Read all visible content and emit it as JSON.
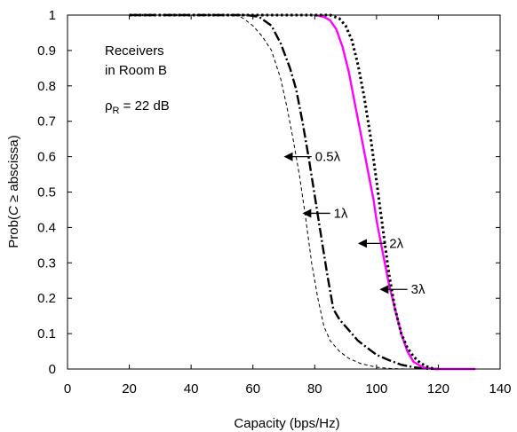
{
  "chart_data": {
    "type": "line",
    "title": "",
    "xlabel": "Capacity (bps/Hz)",
    "ylabel": {
      "prefix": "Prob(",
      "var": "C",
      "op": " ≥ ",
      "suffix": "abscissa)"
    },
    "xlim": [
      0,
      140
    ],
    "ylim": [
      0,
      1
    ],
    "x_ticks": [
      "0",
      "20",
      "40",
      "60",
      "80",
      "100",
      "120",
      "140"
    ],
    "y_ticks": [
      "0",
      "0.1",
      "0.2",
      "0.3",
      "0.4",
      "0.5",
      "0.6",
      "0.7",
      "0.8",
      "0.9",
      "1"
    ],
    "grid": false,
    "legend": "none",
    "note": {
      "line1": "Receivers",
      "line2": "in Room B",
      "rho": "ρ",
      "rho_sub": "R",
      "rho_value": " = 22 dB"
    },
    "series": [
      {
        "name": "0.5λ",
        "color": "#000000",
        "style": "thin-dash",
        "points": [
          [
            20,
            1
          ],
          [
            55,
            1
          ],
          [
            57,
            0.99
          ],
          [
            60,
            0.97
          ],
          [
            63,
            0.94
          ],
          [
            66,
            0.9
          ],
          [
            69,
            0.82
          ],
          [
            71,
            0.74
          ],
          [
            73,
            0.65
          ],
          [
            75,
            0.55
          ],
          [
            77,
            0.43
          ],
          [
            79,
            0.3
          ],
          [
            81,
            0.2
          ],
          [
            83,
            0.12
          ],
          [
            85,
            0.08
          ],
          [
            88,
            0.05
          ],
          [
            91,
            0.03
          ],
          [
            95,
            0.015
          ],
          [
            100,
            0.005
          ],
          [
            105,
            0.001
          ],
          [
            110,
            0
          ]
        ]
      },
      {
        "name": "1λ",
        "color": "#000000",
        "style": "dash-dot",
        "points": [
          [
            20,
            1
          ],
          [
            58,
            1
          ],
          [
            62,
            0.995
          ],
          [
            66,
            0.97
          ],
          [
            69,
            0.92
          ],
          [
            72,
            0.85
          ],
          [
            74,
            0.79
          ],
          [
            76,
            0.7
          ],
          [
            78,
            0.6
          ],
          [
            80,
            0.49
          ],
          [
            82,
            0.38
          ],
          [
            84,
            0.27
          ],
          [
            86,
            0.17
          ],
          [
            88,
            0.14
          ],
          [
            91,
            0.11
          ],
          [
            94,
            0.08
          ],
          [
            97,
            0.06
          ],
          [
            100,
            0.04
          ],
          [
            104,
            0.025
          ],
          [
            108,
            0.012
          ],
          [
            112,
            0.005
          ],
          [
            116,
            0.001
          ],
          [
            120,
            0
          ]
        ]
      },
      {
        "name": "2λ",
        "color": "#ff00ff",
        "style": "solid",
        "points": [
          [
            80,
            1
          ],
          [
            83,
            0.995
          ],
          [
            85,
            0.985
          ],
          [
            87,
            0.96
          ],
          [
            89,
            0.91
          ],
          [
            91,
            0.84
          ],
          [
            93,
            0.75
          ],
          [
            95,
            0.66
          ],
          [
            97,
            0.57
          ],
          [
            99,
            0.48
          ],
          [
            100,
            0.42
          ],
          [
            102,
            0.33
          ],
          [
            104,
            0.24
          ],
          [
            106,
            0.17
          ],
          [
            108,
            0.1
          ],
          [
            110,
            0.05
          ],
          [
            112,
            0.02
          ],
          [
            115,
            0.005
          ],
          [
            118,
            0.001
          ],
          [
            120,
            0
          ],
          [
            132,
            0
          ]
        ]
      },
      {
        "name": "3λ",
        "color": "#000000",
        "style": "bold-dot",
        "points": [
          [
            20,
            1
          ],
          [
            85,
            1
          ],
          [
            88,
            0.99
          ],
          [
            90,
            0.97
          ],
          [
            92,
            0.93
          ],
          [
            94,
            0.86
          ],
          [
            96,
            0.77
          ],
          [
            98,
            0.66
          ],
          [
            100,
            0.53
          ],
          [
            102,
            0.4
          ],
          [
            104,
            0.27
          ],
          [
            106,
            0.17
          ],
          [
            108,
            0.1
          ],
          [
            110,
            0.06
          ],
          [
            112,
            0.035
          ],
          [
            114,
            0.018
          ],
          [
            116,
            0.008
          ],
          [
            118,
            0.002
          ],
          [
            119,
            0
          ]
        ]
      }
    ],
    "annotations": [
      {
        "label": "0.5λ",
        "tail": [
          79,
          0.6
        ],
        "head": [
          70,
          0.6
        ]
      },
      {
        "label": "1λ",
        "tail": [
          85,
          0.44
        ],
        "head": [
          76,
          0.44
        ]
      },
      {
        "label": "2λ",
        "tail": [
          103,
          0.355
        ],
        "head": [
          94,
          0.355
        ]
      },
      {
        "label": "3λ",
        "tail": [
          110,
          0.225
        ],
        "head": [
          101,
          0.225
        ]
      }
    ]
  }
}
